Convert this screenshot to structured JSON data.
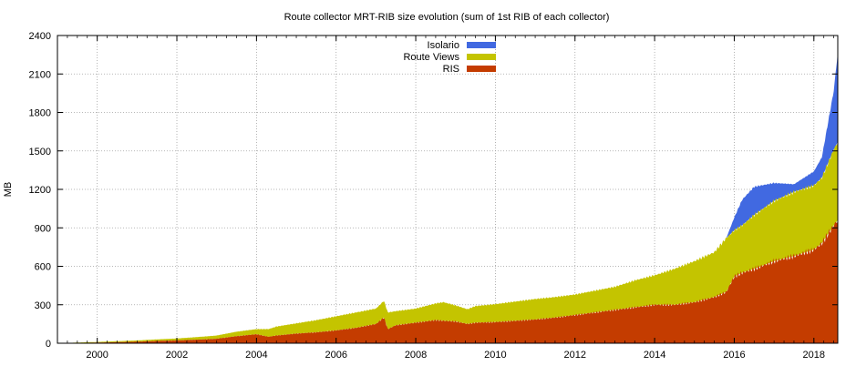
{
  "chart_data": {
    "type": "area",
    "stacked": true,
    "title": "Route collector MRT-RIB size evolution (sum of 1st RIB of each collector)",
    "xlabel": "",
    "ylabel": "MB",
    "xlim": [
      1999.0,
      2018.6
    ],
    "ylim": [
      0,
      2400
    ],
    "xticks": [
      2000,
      2002,
      2004,
      2006,
      2008,
      2010,
      2012,
      2014,
      2016,
      2018
    ],
    "yticks": [
      0,
      300,
      600,
      900,
      1200,
      1500,
      1800,
      2100,
      2400
    ],
    "grid": true,
    "legend_position": "top-center",
    "x": [
      1999.0,
      1999.5,
      2000.0,
      2000.5,
      2001.0,
      2001.5,
      2002.0,
      2002.5,
      2003.0,
      2003.5,
      2004.0,
      2004.3,
      2004.5,
      2005.0,
      2005.5,
      2006.0,
      2006.5,
      2007.0,
      2007.2,
      2007.3,
      2007.5,
      2008.0,
      2008.5,
      2008.7,
      2009.0,
      2009.3,
      2009.5,
      2010.0,
      2010.5,
      2011.0,
      2011.5,
      2012.0,
      2012.5,
      2013.0,
      2013.5,
      2014.0,
      2014.5,
      2015.0,
      2015.5,
      2015.8,
      2016.0,
      2016.2,
      2016.5,
      2017.0,
      2017.5,
      2018.0,
      2018.2,
      2018.5,
      2018.6
    ],
    "series": [
      {
        "name": "RIS",
        "color": "#c43c00",
        "values": [
          0,
          2,
          5,
          8,
          12,
          18,
          22,
          28,
          35,
          55,
          70,
          50,
          60,
          75,
          85,
          100,
          120,
          150,
          200,
          110,
          140,
          160,
          180,
          175,
          170,
          150,
          160,
          165,
          175,
          185,
          200,
          220,
          240,
          260,
          280,
          300,
          300,
          320,
          360,
          400,
          520,
          550,
          580,
          640,
          680,
          730,
          780,
          920,
          960
        ]
      },
      {
        "name": "Route Views",
        "color": "#c4c400",
        "values": [
          0,
          3,
          5,
          8,
          10,
          12,
          15,
          20,
          25,
          35,
          40,
          60,
          70,
          80,
          95,
          110,
          120,
          120,
          130,
          130,
          110,
          110,
          130,
          145,
          125,
          115,
          130,
          140,
          150,
          160,
          160,
          160,
          170,
          180,
          210,
          230,
          280,
          320,
          350,
          420,
          360,
          370,
          420,
          470,
          500,
          500,
          510,
          590,
          610
        ]
      },
      {
        "name": "Isolario",
        "color": "#4169e1",
        "values": [
          0,
          0,
          0,
          0,
          0,
          0,
          0,
          0,
          0,
          0,
          0,
          0,
          0,
          0,
          0,
          0,
          0,
          0,
          0,
          0,
          0,
          0,
          0,
          0,
          0,
          0,
          0,
          0,
          0,
          0,
          0,
          0,
          0,
          0,
          0,
          0,
          0,
          0,
          0,
          0,
          100,
          200,
          220,
          140,
          60,
          110,
          160,
          460,
          700
        ]
      }
    ],
    "legend_order": [
      "Isolario",
      "Route Views",
      "RIS"
    ]
  }
}
